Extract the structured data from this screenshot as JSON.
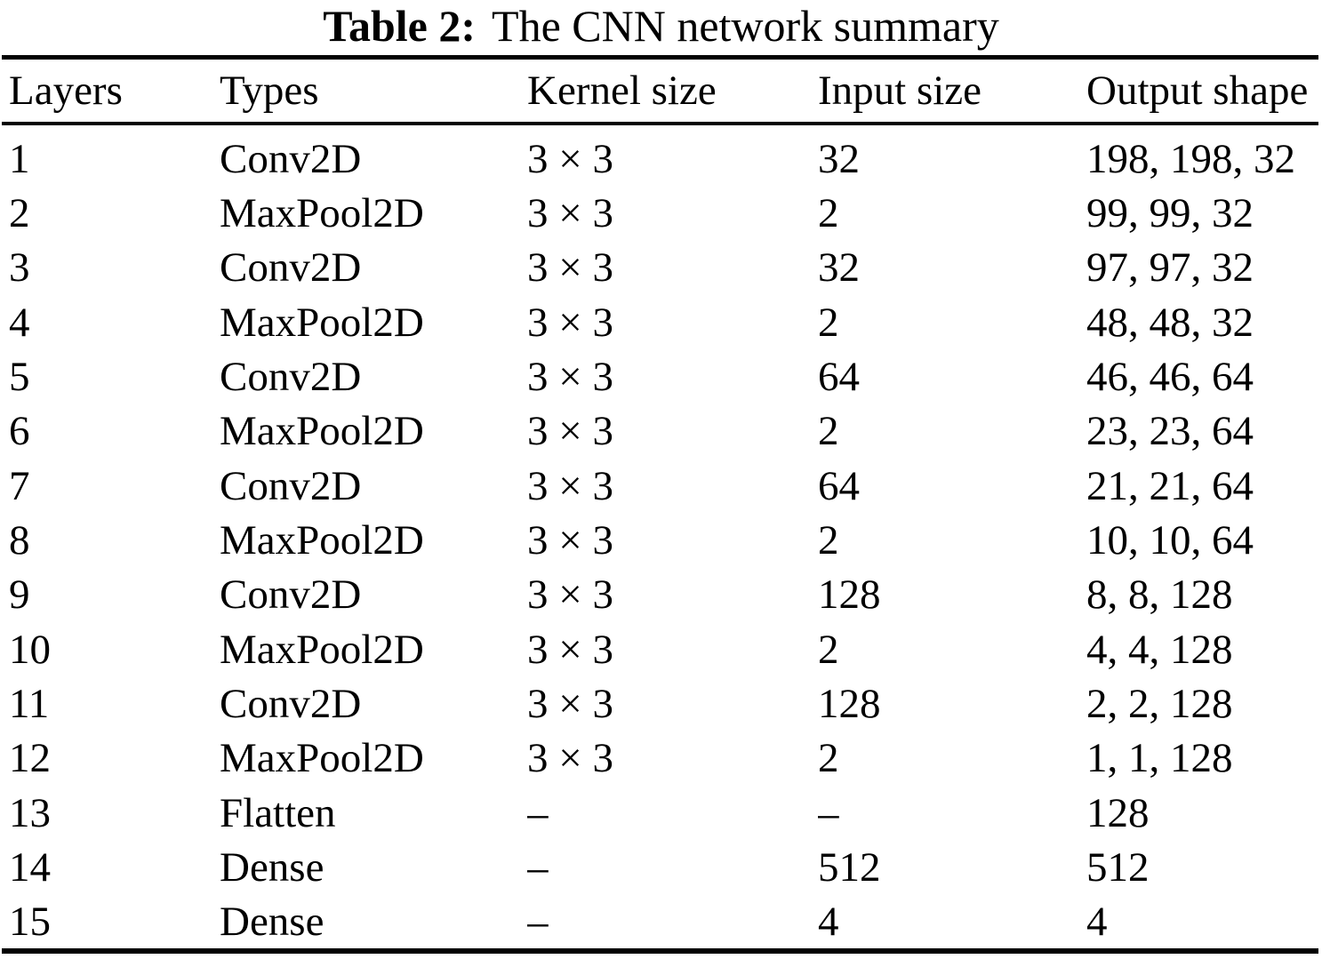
{
  "caption": {
    "label": "Table 2:",
    "text": "The CNN network summary"
  },
  "table": {
    "columns": [
      "Layers",
      "Types",
      "Kernel size",
      "Input size",
      "Output shape"
    ],
    "rows": [
      [
        "1",
        "Conv2D",
        "3 × 3",
        "32",
        "198, 198, 32"
      ],
      [
        "2",
        "MaxPool2D",
        "3 × 3",
        "2",
        "99, 99, 32"
      ],
      [
        "3",
        "Conv2D",
        "3 × 3",
        "32",
        "97, 97, 32"
      ],
      [
        "4",
        "MaxPool2D",
        "3 × 3",
        "2",
        "48, 48, 32"
      ],
      [
        "5",
        "Conv2D",
        "3 × 3",
        "64",
        "46, 46, 64"
      ],
      [
        "6",
        "MaxPool2D",
        "3 × 3",
        "2",
        "23, 23, 64"
      ],
      [
        "7",
        "Conv2D",
        "3 × 3",
        "64",
        "21, 21, 64"
      ],
      [
        "8",
        "MaxPool2D",
        "3 × 3",
        "2",
        "10, 10, 64"
      ],
      [
        "9",
        "Conv2D",
        "3 × 3",
        "128",
        "8, 8, 128"
      ],
      [
        "10",
        "MaxPool2D",
        "3 × 3",
        "2",
        "4, 4, 128"
      ],
      [
        "11",
        "Conv2D",
        "3 × 3",
        "128",
        "2, 2, 128"
      ],
      [
        "12",
        "MaxPool2D",
        "3 × 3",
        "2",
        "1, 1, 128"
      ],
      [
        "13",
        "Flatten",
        "–",
        "–",
        "128"
      ],
      [
        "14",
        "Dense",
        "–",
        "512",
        "512"
      ],
      [
        "15",
        "Dense",
        "–",
        "4",
        "4"
      ]
    ]
  },
  "colors": {
    "text": "#000000",
    "background": "#ffffff",
    "rule": "#000000"
  }
}
